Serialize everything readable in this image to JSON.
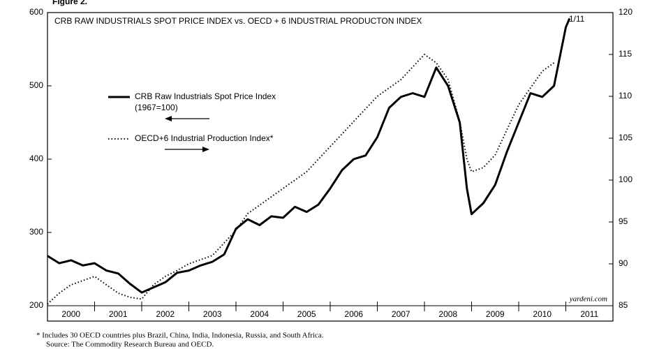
{
  "chart_data": {
    "type": "line",
    "figure_label": "Figure 2.",
    "title": "CRB RAW INDUSTRIALS SPOT PRICE INDEX vs. OECD + 6 INDUSTRIAL PRODUCTON INDEX",
    "x": [
      2000,
      2000.25,
      2000.5,
      2000.75,
      2001,
      2001.25,
      2001.5,
      2001.75,
      2002,
      2002.25,
      2002.5,
      2002.75,
      2003,
      2003.25,
      2003.5,
      2003.75,
      2004,
      2004.25,
      2004.5,
      2004.75,
      2005,
      2005.25,
      2005.5,
      2005.75,
      2006,
      2006.25,
      2006.5,
      2006.75,
      2007,
      2007.25,
      2007.5,
      2007.75,
      2008,
      2008.25,
      2008.5,
      2008.75,
      2008.9,
      2009,
      2009.25,
      2009.5,
      2009.75,
      2010,
      2010.25,
      2010.5,
      2010.75,
      2011,
      2011.08
    ],
    "series": [
      {
        "name": "CRB Raw Industrials Spot Price Index",
        "color": "#000000",
        "style": "solid",
        "axis": "y",
        "values": [
          268,
          258,
          262,
          255,
          258,
          248,
          244,
          230,
          218,
          225,
          232,
          245,
          248,
          255,
          260,
          270,
          305,
          318,
          310,
          322,
          320,
          335,
          328,
          338,
          360,
          385,
          400,
          405,
          430,
          470,
          485,
          490,
          485,
          525,
          500,
          450,
          360,
          325,
          340,
          365,
          410,
          450,
          490,
          485,
          500,
          580,
          592
        ]
      },
      {
        "name": "OECD+6 Industrial Production Index*",
        "color": "#000000",
        "style": "dotted",
        "axis": "y2",
        "values": [
          85.2,
          86.5,
          87.5,
          88,
          88.5,
          87.5,
          86.5,
          86,
          85.8,
          87.5,
          88.5,
          89.2,
          90,
          90.5,
          91,
          92.5,
          94,
          96,
          97,
          98,
          99,
          100,
          101,
          102.5,
          104,
          105.5,
          107,
          108.5,
          110,
          111,
          112,
          113.5,
          115,
          114,
          112,
          107,
          102.5,
          101,
          101.5,
          103,
          106,
          109,
          111,
          113,
          114,
          null,
          null
        ]
      }
    ],
    "legend_note": "(1967=100)",
    "end_label": "1/11",
    "source_mark": "yardeni.com",
    "xlim": [
      2000,
      2012
    ],
    "xticks": [
      2000,
      2001,
      2002,
      2003,
      2004,
      2005,
      2006,
      2007,
      2008,
      2009,
      2010,
      2011,
      2012
    ],
    "year_labels": [
      "2000",
      "2001",
      "2002",
      "2003",
      "2004",
      "2005",
      "2006",
      "2007",
      "2008",
      "2009",
      "2010",
      "2011"
    ],
    "ylim": [
      200,
      600
    ],
    "yticks": [
      200,
      300,
      400,
      500,
      600
    ],
    "y2lim": [
      85,
      120
    ],
    "y2ticks": [
      85,
      90,
      95,
      100,
      105,
      110,
      115,
      120
    ],
    "footnotes": [
      "*  Includes 30 OECD countries plus Brazil, China, India, Indonesia, Russia, and South Africa.",
      "Source: The Commodity Research Bureau and OECD."
    ]
  }
}
